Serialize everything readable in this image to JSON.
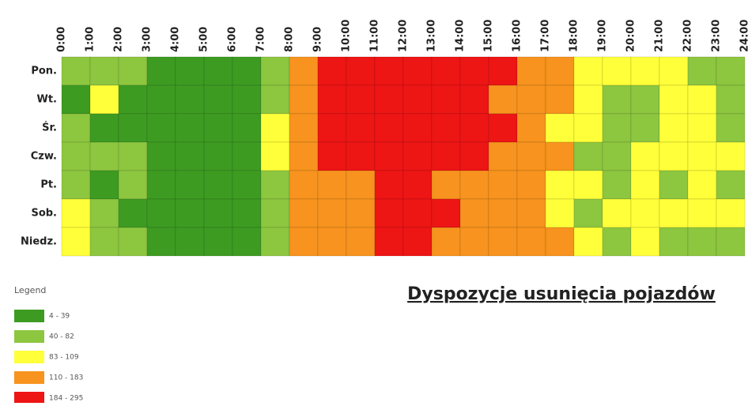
{
  "chart_data": {
    "type": "heatmap",
    "title": "Dyspozycje usunięcia pojazdów",
    "legend_title": "Legend",
    "x": [
      "0:00",
      "1:00",
      "2:00",
      "3:00",
      "4:00",
      "5:00",
      "6:00",
      "7:00",
      "8:00",
      "9:00",
      "10:00",
      "11:00",
      "12:00",
      "13:00",
      "14:00",
      "15:00",
      "16:00",
      "17:00",
      "18:00",
      "19:00",
      "20:00",
      "21:00",
      "22:00",
      "23:00",
      "24:00"
    ],
    "categories": [
      "Pon.",
      "Wt.",
      "Śr.",
      "Czw.",
      "Pt.",
      "Sob.",
      "Niedz."
    ],
    "classes": [
      {
        "name": "4 - 39",
        "color": "#3d9b22"
      },
      {
        "name": "40 - 82",
        "color": "#8dc63f"
      },
      {
        "name": "83 - 109",
        "color": "#ffff3a"
      },
      {
        "name": "110 - 183",
        "color": "#f7931e"
      },
      {
        "name": "184 - 295",
        "color": "#ee1515"
      }
    ],
    "values": [
      [
        1,
        1,
        1,
        0,
        0,
        0,
        0,
        1,
        3,
        4,
        4,
        4,
        4,
        4,
        4,
        4,
        3,
        3,
        2,
        2,
        2,
        2,
        1,
        1
      ],
      [
        0,
        2,
        0,
        0,
        0,
        0,
        0,
        1,
        3,
        4,
        4,
        4,
        4,
        4,
        4,
        3,
        3,
        3,
        2,
        1,
        1,
        2,
        2,
        1
      ],
      [
        1,
        0,
        0,
        0,
        0,
        0,
        0,
        2,
        3,
        4,
        4,
        4,
        4,
        4,
        4,
        4,
        3,
        2,
        2,
        1,
        1,
        2,
        2,
        1
      ],
      [
        1,
        1,
        1,
        0,
        0,
        0,
        0,
        2,
        3,
        4,
        4,
        4,
        4,
        4,
        4,
        3,
        3,
        3,
        1,
        1,
        2,
        2,
        2,
        2
      ],
      [
        1,
        0,
        1,
        0,
        0,
        0,
        0,
        1,
        3,
        3,
        3,
        4,
        4,
        3,
        3,
        3,
        3,
        2,
        2,
        1,
        2,
        1,
        2,
        1
      ],
      [
        2,
        1,
        0,
        0,
        0,
        0,
        0,
        1,
        3,
        3,
        3,
        4,
        4,
        4,
        3,
        3,
        3,
        2,
        1,
        2,
        2,
        2,
        2,
        2
      ],
      [
        2,
        1,
        1,
        0,
        0,
        0,
        0,
        1,
        3,
        3,
        3,
        4,
        4,
        3,
        3,
        3,
        3,
        3,
        2,
        1,
        2,
        1,
        1,
        1
      ]
    ]
  }
}
